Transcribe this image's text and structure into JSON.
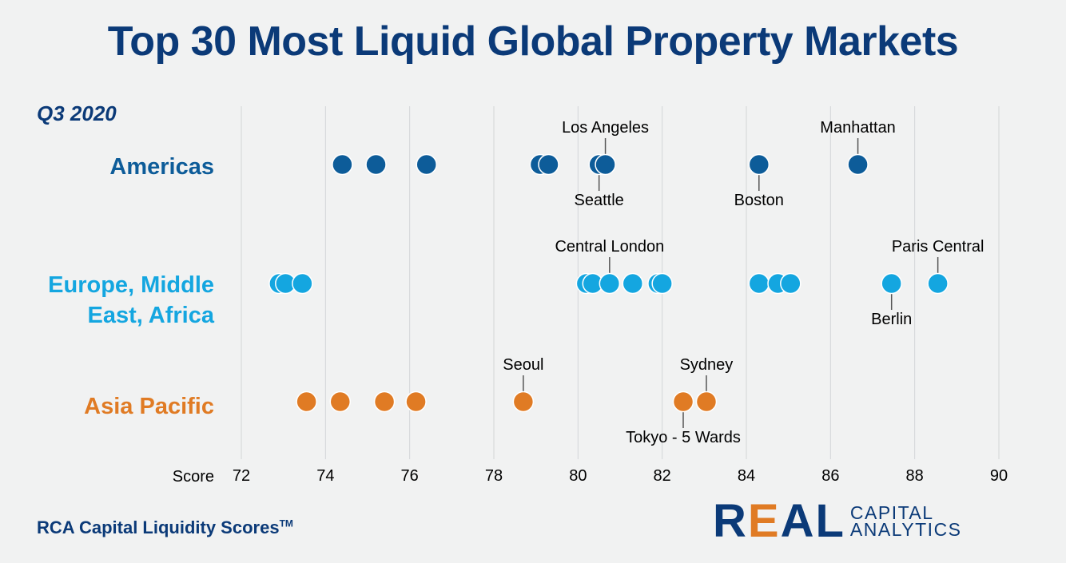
{
  "header": {
    "title": "Top 30 Most Liquid Global Property Markets",
    "subtitle": "Q3 2020"
  },
  "footer": {
    "source": "RCA Capital Liquidity Scores",
    "trademark": "TM"
  },
  "logo": {
    "real": "REAL",
    "line1": "CAPITAL",
    "line2": "ANALYTICS"
  },
  "colors": {
    "americas": "#0d5c99",
    "emea": "#14a6e0",
    "asia": "#e07b24",
    "title": "#0b3a78"
  },
  "chart_data": {
    "type": "scatter",
    "title": "Top 30 Most Liquid Global Property Markets",
    "xlabel": "Score",
    "xlim": [
      72,
      90
    ],
    "xticks": [
      72,
      74,
      76,
      78,
      80,
      82,
      84,
      86,
      88,
      90
    ],
    "grid": true,
    "series": [
      {
        "name": "Americas",
        "color": "#0d5c99",
        "values": [
          74.4,
          75.2,
          76.4,
          79.1,
          79.3,
          80.5,
          80.65,
          84.3,
          86.65
        ],
        "labels": [
          {
            "text": "Los Angeles",
            "value": 80.65,
            "position": "above"
          },
          {
            "text": "Seattle",
            "value": 80.5,
            "position": "below"
          },
          {
            "text": "Boston",
            "value": 84.3,
            "position": "below"
          },
          {
            "text": "Manhattan",
            "value": 86.65,
            "position": "above"
          }
        ]
      },
      {
        "name": "Europe, Middle East, Africa",
        "color": "#14a6e0",
        "values": [
          72.9,
          73.05,
          73.45,
          80.2,
          80.35,
          80.75,
          81.3,
          81.9,
          82.0,
          84.3,
          84.75,
          85.05,
          87.45,
          88.55
        ],
        "labels": [
          {
            "text": "Central London",
            "value": 80.75,
            "position": "above"
          },
          {
            "text": "Paris Central",
            "value": 88.55,
            "position": "above"
          },
          {
            "text": "Berlin",
            "value": 87.45,
            "position": "below"
          }
        ]
      },
      {
        "name": "Asia Pacific",
        "color": "#e07b24",
        "values": [
          73.55,
          74.35,
          75.4,
          76.15,
          78.7,
          82.5,
          83.05
        ],
        "labels": [
          {
            "text": "Seoul",
            "value": 78.7,
            "position": "above"
          },
          {
            "text": "Sydney",
            "value": 83.05,
            "position": "above"
          },
          {
            "text": "Tokyo - 5 Wards",
            "value": 82.5,
            "position": "below"
          }
        ]
      }
    ]
  }
}
